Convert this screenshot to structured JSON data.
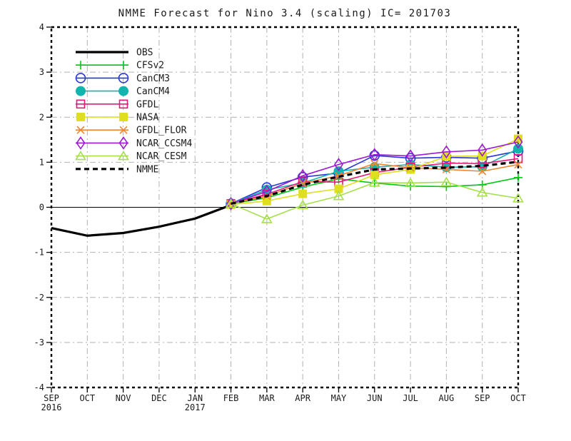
{
  "chart_data": {
    "type": "line",
    "title": "NMME Forecast for Nino 3.4 (scaling) IC= 201703",
    "xlabel": "",
    "ylabel": "",
    "ylim": [
      -4,
      4
    ],
    "y_ticks": [
      4,
      3,
      2,
      1,
      0,
      -1,
      -2,
      -3,
      -4
    ],
    "x_categories": [
      "SEP",
      "OCT",
      "NOV",
      "DEC",
      "JAN",
      "FEB",
      "MAR",
      "APR",
      "MAY",
      "JUN",
      "JUL",
      "AUG",
      "SEP",
      "OCT"
    ],
    "x_year_labels": [
      {
        "index": 0,
        "label": "2016"
      },
      {
        "index": 4,
        "label": "2017"
      }
    ],
    "grid": true,
    "gridline_color": "#b2b2b2",
    "zero_line": true,
    "frame_style": "dashed",
    "legend_position": "top-left",
    "series": [
      {
        "name": "OBS",
        "color": "#000000",
        "marker": "none",
        "line": "solid",
        "width": 3.2,
        "start_index": 0,
        "values": [
          -0.46,
          -0.63,
          -0.57,
          -0.43,
          -0.25,
          0.05
        ]
      },
      {
        "name": "CFSv2",
        "color": "#00c814",
        "marker": "plus",
        "line": "solid",
        "width": 1.6,
        "start_index": 5,
        "values": [
          0.08,
          0.21,
          0.45,
          0.63,
          0.54,
          0.47,
          0.46,
          0.5,
          0.66
        ]
      },
      {
        "name": "CanCM3",
        "color": "#2936d8",
        "marker": "circle-open",
        "line": "solid",
        "width": 1.6,
        "start_index": 5,
        "values": [
          0.08,
          0.44,
          0.67,
          0.76,
          1.15,
          1.09,
          1.11,
          1.09,
          1.25
        ]
      },
      {
        "name": "CanCM4",
        "color": "#12b5ad",
        "marker": "circle-filled",
        "line": "solid",
        "width": 1.6,
        "start_index": 5,
        "values": [
          0.08,
          0.39,
          0.54,
          0.8,
          0.89,
          0.95,
          0.89,
          0.9,
          1.3
        ]
      },
      {
        "name": "GFDL",
        "color": "#ea1678",
        "marker": "square-open",
        "line": "solid",
        "width": 1.6,
        "start_index": 5,
        "values": [
          0.08,
          0.29,
          0.57,
          0.56,
          0.77,
          0.89,
          0.98,
          0.97,
          1.08
        ]
      },
      {
        "name": "NASA",
        "color": "#dfdf1f",
        "marker": "square-filled",
        "line": "solid",
        "width": 1.6,
        "start_index": 5,
        "values": [
          0.06,
          0.14,
          0.3,
          0.41,
          0.72,
          0.84,
          1.13,
          1.14,
          1.52
        ]
      },
      {
        "name": "GFDL_FLOR",
        "color": "#ef8632",
        "marker": "x",
        "line": "solid",
        "width": 1.6,
        "start_index": 5,
        "values": [
          0.08,
          0.25,
          0.53,
          0.7,
          0.97,
          0.88,
          0.84,
          0.8,
          0.95
        ]
      },
      {
        "name": "NCAR_CCSM4",
        "color": "#9c1ad0",
        "marker": "diamond-open",
        "line": "solid",
        "width": 1.6,
        "start_index": 5,
        "values": [
          0.08,
          0.35,
          0.7,
          0.95,
          1.17,
          1.14,
          1.23,
          1.27,
          1.45
        ]
      },
      {
        "name": "NCAR_CESM",
        "color": "#a5e04a",
        "marker": "triangle-open",
        "line": "solid",
        "width": 1.6,
        "start_index": 5,
        "values": [
          0.08,
          -0.26,
          0.05,
          0.25,
          0.55,
          0.54,
          0.56,
          0.33,
          0.2
        ]
      },
      {
        "name": "NMME",
        "color": "#000000",
        "marker": "none",
        "line": "dashed",
        "width": 3.2,
        "start_index": 5,
        "values": [
          0.08,
          0.25,
          0.5,
          0.68,
          0.84,
          0.86,
          0.88,
          0.92,
          1.01
        ]
      }
    ]
  }
}
